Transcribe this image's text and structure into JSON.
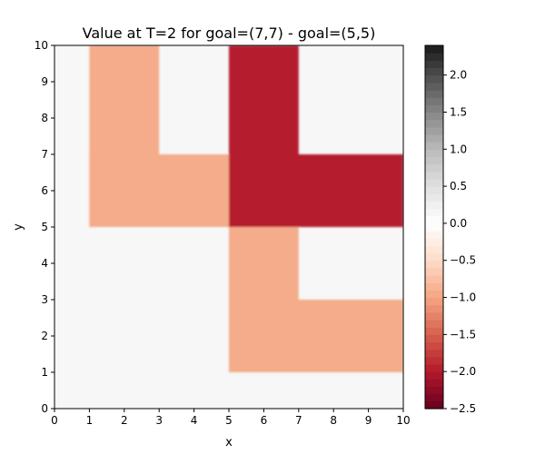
{
  "chart_data": {
    "type": "heatmap",
    "title": "Value at T=2 for goal=(7,7) - goal=(5,5)",
    "xlabel": "x",
    "ylabel": "y",
    "xlim": [
      0,
      10
    ],
    "ylim": [
      0,
      10
    ],
    "x_ticks": [
      "0",
      "1",
      "2",
      "3",
      "4",
      "5",
      "6",
      "7",
      "8",
      "9",
      "10"
    ],
    "y_ticks": [
      "0",
      "1",
      "2",
      "3",
      "4",
      "5",
      "6",
      "7",
      "8",
      "9",
      "10"
    ],
    "grid": false,
    "colormap": "RdGy",
    "colorbar": {
      "vmin": -2.5,
      "vmax": 2.4,
      "ticks": [
        {
          "value": -2.5,
          "label": "−2.5"
        },
        {
          "value": -2.0,
          "label": "−2.0"
        },
        {
          "value": -1.5,
          "label": "−1.5"
        },
        {
          "value": -1.0,
          "label": "−1.0"
        },
        {
          "value": -0.5,
          "label": "−0.5"
        },
        {
          "value": 0.0,
          "label": "0.0"
        },
        {
          "value": 0.5,
          "label": "0.5"
        },
        {
          "value": 1.0,
          "label": "1.0"
        },
        {
          "value": 1.5,
          "label": "1.5"
        },
        {
          "value": 2.0,
          "label": "2.0"
        }
      ],
      "color_stops": [
        {
          "value": -2.5,
          "color": "#67001f"
        },
        {
          "value": -2.0,
          "color": "#b2182b"
        },
        {
          "value": -1.5,
          "color": "#d6604d"
        },
        {
          "value": -1.0,
          "color": "#f4a582"
        },
        {
          "value": -0.5,
          "color": "#fddbc7"
        },
        {
          "value": 0.0,
          "color": "#ffffff"
        },
        {
          "value": 0.5,
          "color": "#e0e0e0"
        },
        {
          "value": 1.0,
          "color": "#bababa"
        },
        {
          "value": 1.5,
          "color": "#878787"
        },
        {
          "value": 2.0,
          "color": "#4d4d4d"
        },
        {
          "value": 2.4,
          "color": "#1a1a1a"
        }
      ]
    },
    "background_value": 0.0,
    "background_color": "#f7f7f7",
    "regions": [
      {
        "name": "goal-(5,5)-vertical-arm",
        "x_range": [
          1,
          3
        ],
        "y_range": [
          5,
          10
        ],
        "value": -1.0,
        "color": "#f4ac8a"
      },
      {
        "name": "goal-(5,5)-horizontal-arm",
        "x_range": [
          1,
          5
        ],
        "y_range": [
          5,
          7
        ],
        "value": -1.0,
        "color": "#f4ac8a"
      },
      {
        "name": "goal-(5,5)-lower-vertical-arm",
        "x_range": [
          5,
          7
        ],
        "y_range": [
          1,
          5
        ],
        "value": -1.0,
        "color": "#f4ac8a"
      },
      {
        "name": "goal-(5,5)-lower-horizontal-arm",
        "x_range": [
          5,
          10
        ],
        "y_range": [
          1,
          3
        ],
        "value": -1.0,
        "color": "#f4ac8a"
      },
      {
        "name": "goal-(7,7)-vertical-arm",
        "x_range": [
          5,
          7
        ],
        "y_range": [
          5,
          10
        ],
        "value": -2.0,
        "color": "#b51f2e"
      },
      {
        "name": "goal-(7,7)-horizontal-arm",
        "x_range": [
          5,
          10
        ],
        "y_range": [
          5,
          7
        ],
        "value": -2.0,
        "color": "#b51f2e"
      }
    ]
  }
}
